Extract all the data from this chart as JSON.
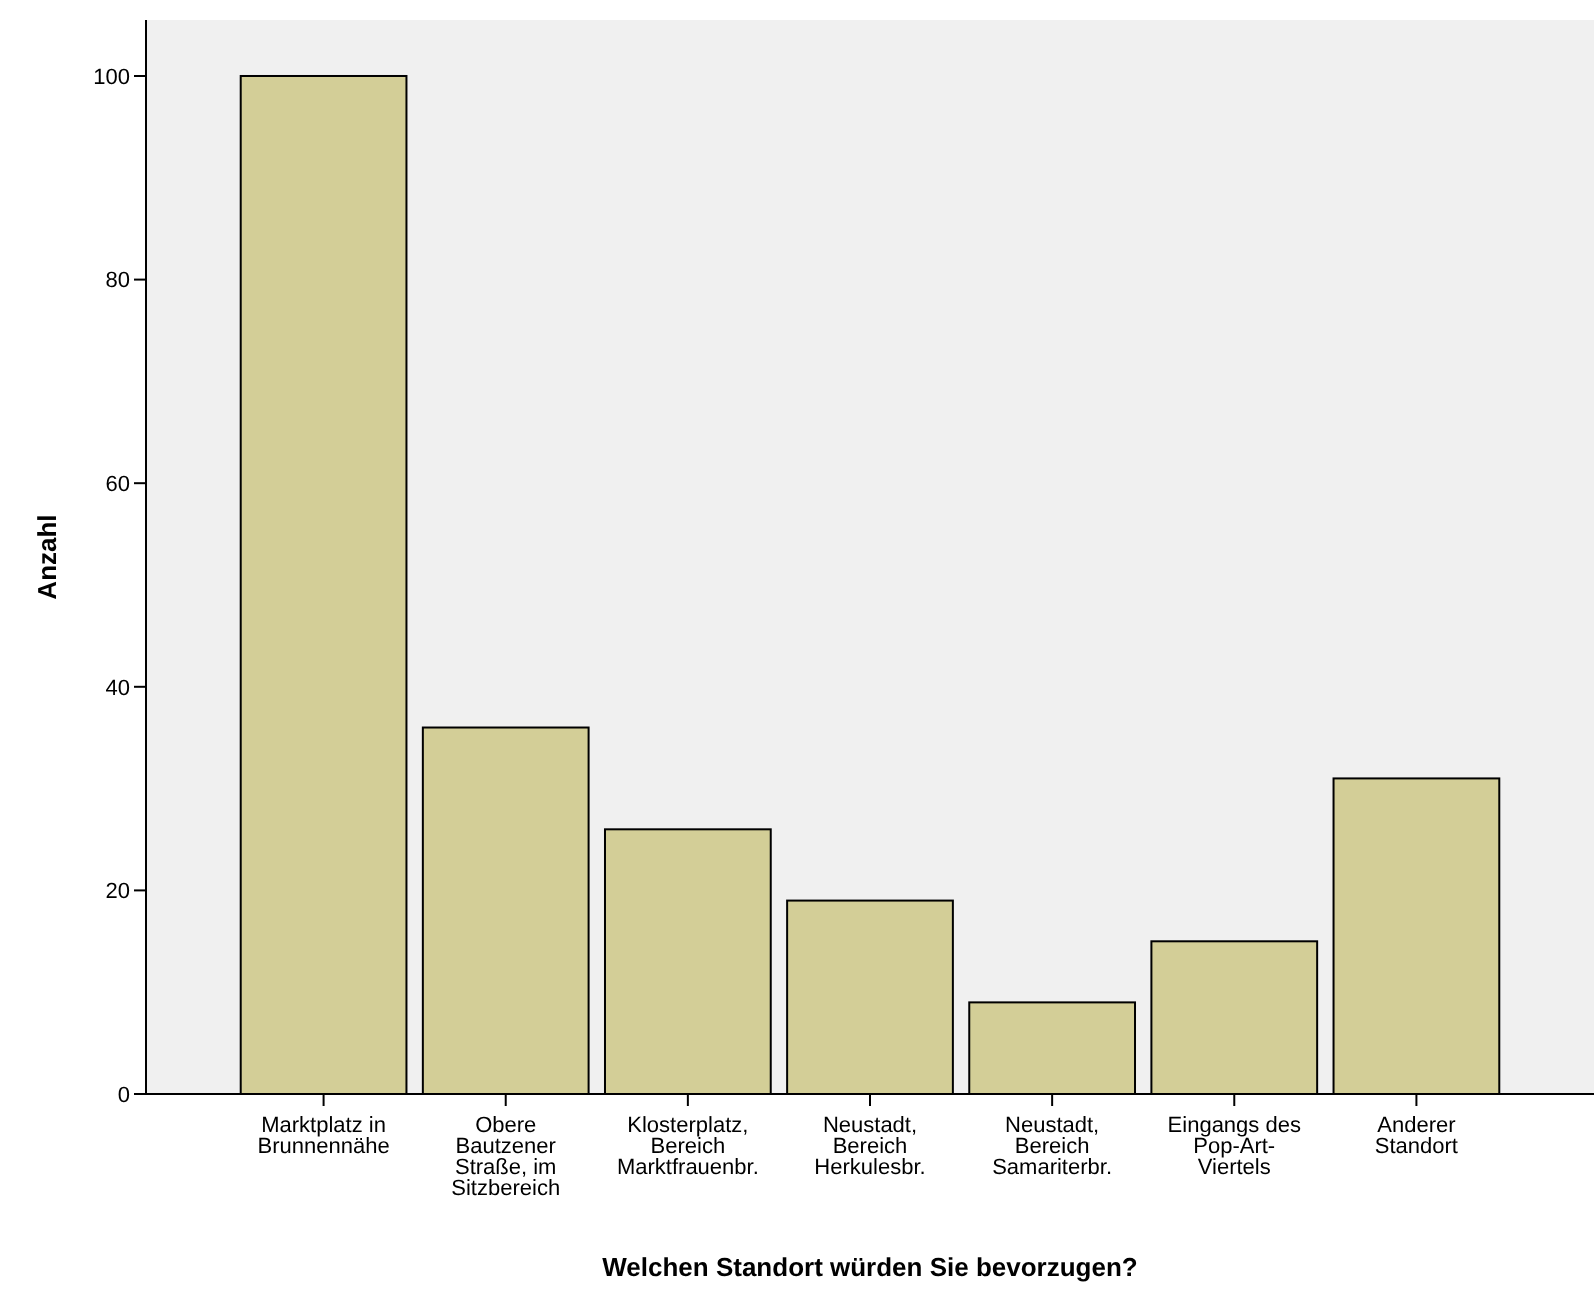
{
  "chart_data": {
    "type": "bar",
    "xlabel": "Welchen Standort würden Sie bevorzugen?",
    "ylabel": "Anzahl",
    "categories": [
      "Marktplatz in Brunnennähe",
      "Obere Bautzener Straße, im Sitzbereich",
      "Klosterplatz, Bereich Marktfrauenbr.",
      "Neustadt, Bereich Herkulesbr.",
      "Neustadt, Bereich Samariterbr.",
      "Eingangs des Pop-Art-Viertels",
      "Anderer Standort"
    ],
    "values": [
      100,
      36,
      26,
      19,
      9,
      15,
      31
    ],
    "color": "#d3ce97",
    "ylim": [
      0,
      105.5
    ],
    "yticks": [
      0,
      20,
      40,
      60,
      80,
      100
    ],
    "grid": false
  }
}
